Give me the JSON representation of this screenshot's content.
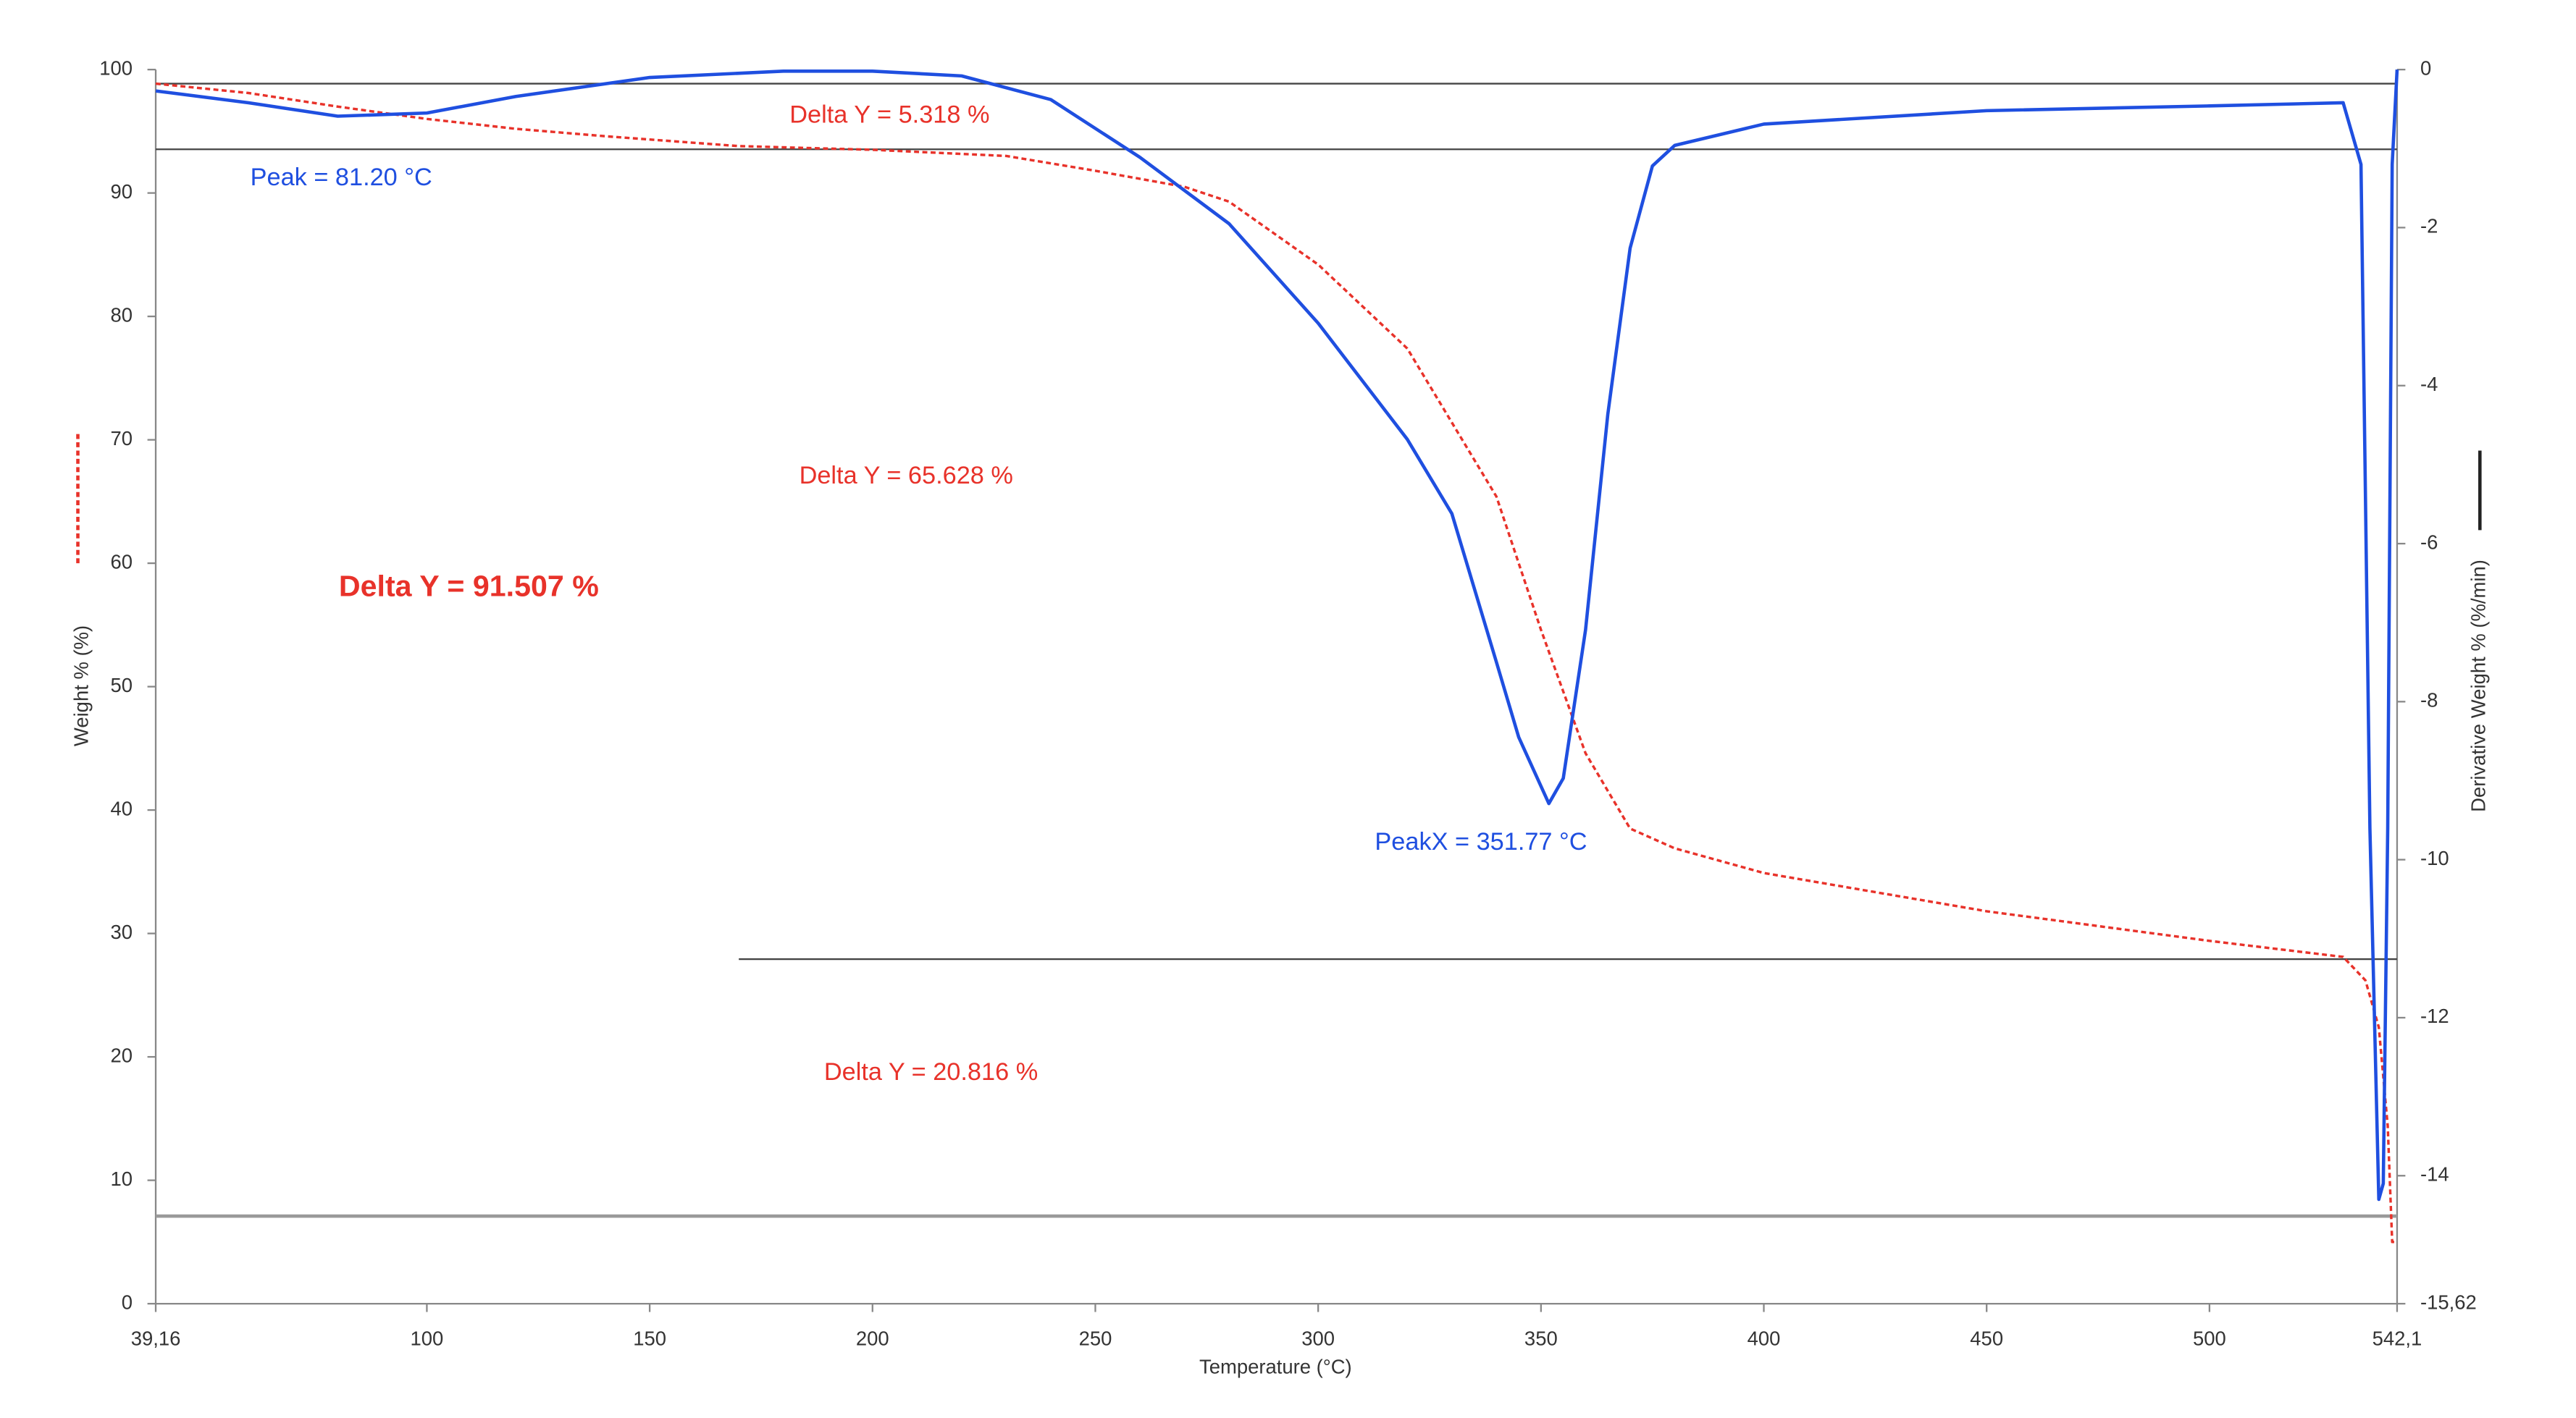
{
  "chart_data": {
    "type": "line",
    "x_label": "Temperature (°C)",
    "y_label": "Weight % (%)",
    "y2_label": "Derivative Weight % (%/min)",
    "xlim": [
      39.16,
      542.1
    ],
    "xticks": [
      {
        "value": 39.16,
        "label": "39,16"
      },
      100,
      150,
      200,
      250,
      300,
      350,
      400,
      450,
      500,
      {
        "value": 542.1,
        "label": "542,1"
      }
    ],
    "ylim": [
      0,
      100
    ],
    "yticks": [
      0,
      10,
      20,
      30,
      40,
      50,
      60,
      70,
      80,
      90,
      100
    ],
    "y2lim": [
      -15.62,
      0
    ],
    "y2ticks": [
      {
        "value": -15.62,
        "label": "-15,62"
      },
      -14,
      -12,
      -10,
      -8,
      -6,
      -4,
      -2,
      0
    ],
    "series": [
      {
        "name": "Weight % (%)",
        "color": "#e8322a",
        "style": "dashed",
        "x": [
          39.16,
          60,
          80,
          100,
          120,
          140,
          170,
          200,
          230,
          250,
          270,
          280,
          300,
          320,
          340,
          350,
          360,
          370,
          380,
          400,
          450,
          500,
          530,
          535,
          538,
          540,
          541,
          542.1
        ],
        "values": [
          98.86,
          98.1,
          97.0,
          96.0,
          95.2,
          94.6,
          93.8,
          93.5,
          93.0,
          91.8,
          90.5,
          89.3,
          84.2,
          77.4,
          65.4,
          54.6,
          44.6,
          38.5,
          36.9,
          34.9,
          31.8,
          29.4,
          28.1,
          26.2,
          22.4,
          14.4,
          5.0,
          5.0
        ]
      },
      {
        "name": "Derivative Weight % (%/min)",
        "color": "#1f4fe0",
        "axis": "y2",
        "x": [
          39.16,
          60,
          80,
          100,
          120,
          150,
          180,
          200,
          220,
          240,
          260,
          280,
          300,
          320,
          330,
          340,
          345,
          351.77,
          355,
          360,
          365,
          370,
          375,
          380,
          400,
          450,
          500,
          530,
          534,
          536,
          538,
          539,
          540,
          541,
          542.1
        ],
        "values": [
          -0.27,
          -0.42,
          -0.59,
          -0.55,
          -0.34,
          -0.1,
          -0.02,
          -0.02,
          -0.08,
          -0.38,
          -1.11,
          -1.95,
          -3.21,
          -4.68,
          -5.62,
          -7.5,
          -8.45,
          -9.29,
          -8.97,
          -7.09,
          -4.36,
          -2.26,
          -1.22,
          -0.96,
          -0.69,
          -0.52,
          -0.46,
          -0.42,
          -1.2,
          -9.6,
          -14.3,
          -14.1,
          -9.6,
          -1.2,
          0
        ]
      }
    ],
    "hlines": [
      {
        "y": 98.86,
        "x": [
          39.16,
          542.1
        ]
      },
      {
        "y": 93.54,
        "x": [
          39.16,
          542.1
        ]
      },
      {
        "y": 27.92,
        "x": [
          170,
          542.1
        ]
      },
      {
        "y": 7.1,
        "x": [
          39.16,
          542.1
        ]
      }
    ],
    "annotations": [
      "Delta Y = 5.318 %",
      "Delta Y = 65.628 %",
      "Delta Y = 91.507 %",
      "Delta Y = 20.816 %",
      "Peak = 81.20 °C",
      "PeakX = 351.77 °C"
    ]
  }
}
